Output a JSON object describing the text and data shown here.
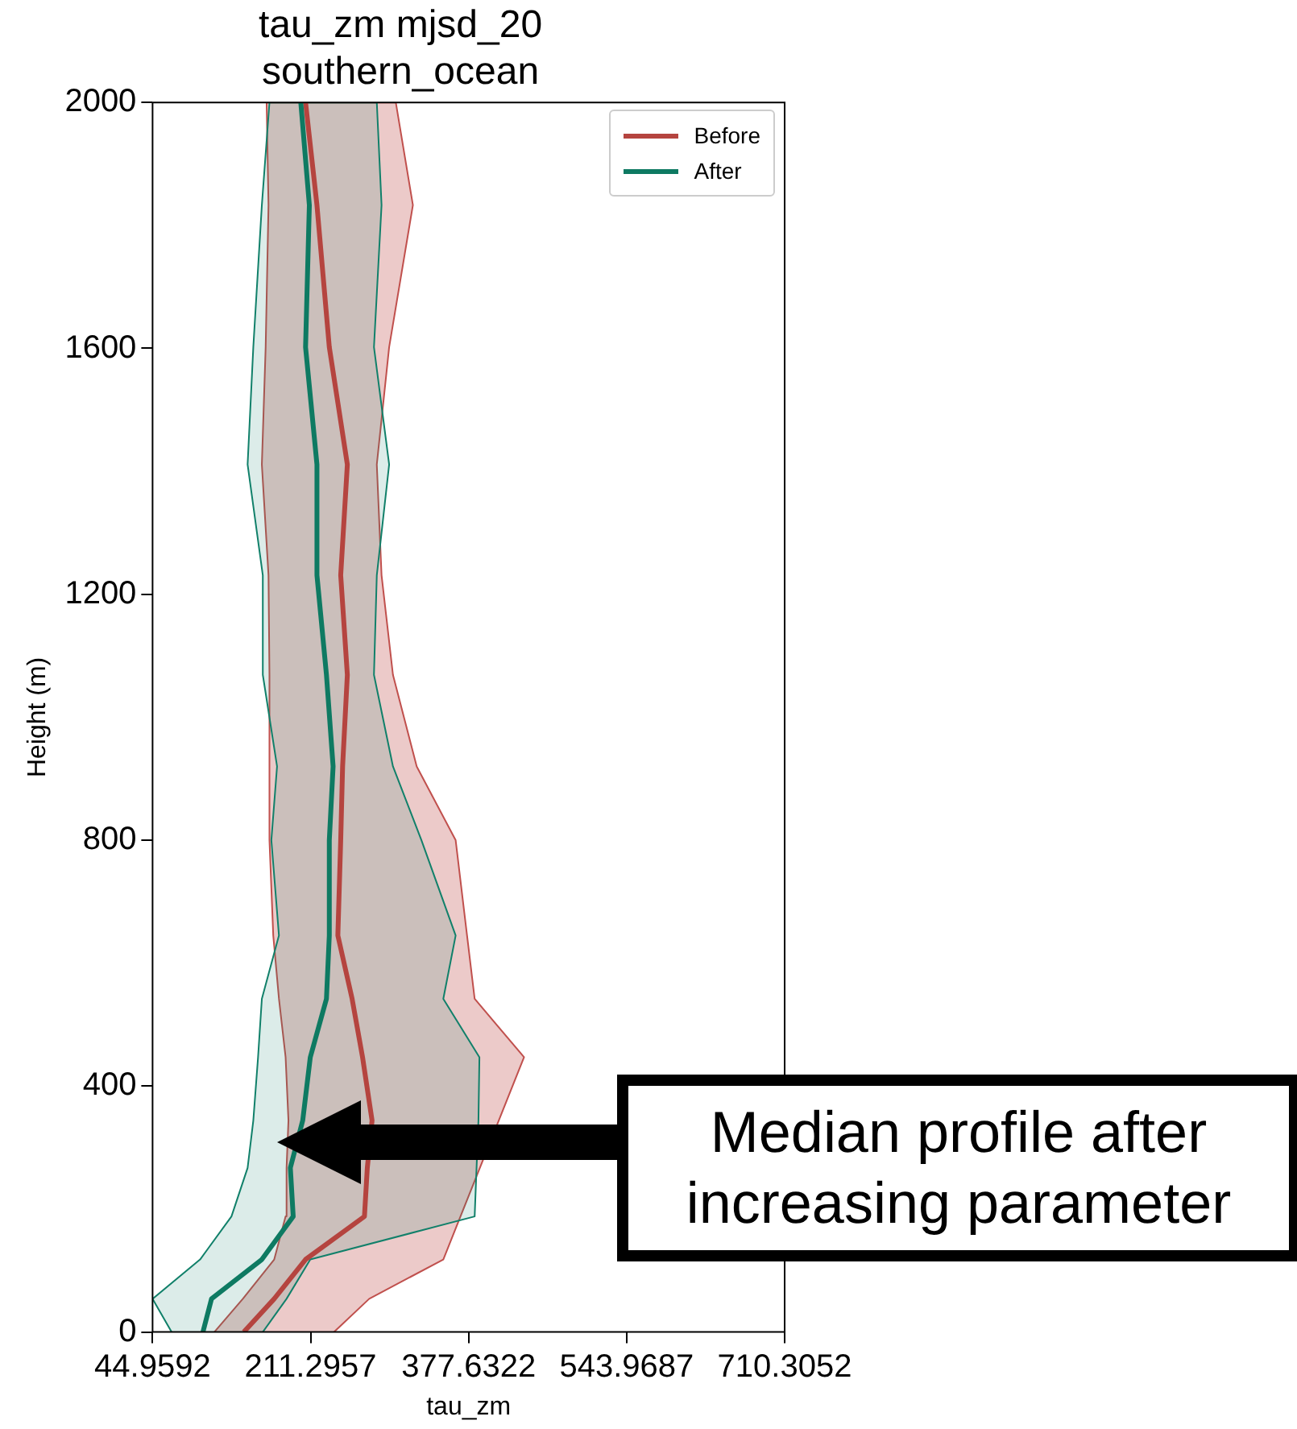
{
  "chart_data": {
    "type": "line",
    "title": "tau_zm mjsd_20",
    "subtitle": "southern_ocean",
    "xlabel": "tau_zm",
    "ylabel": "Height (m)",
    "xlim": [
      44.9592,
      710.3052
    ],
    "xticks": [
      44.9592,
      211.2957,
      377.6322,
      543.9687,
      710.3052
    ],
    "ylim": [
      0,
      2000
    ],
    "yticks": [
      0,
      400,
      800,
      1200,
      1600,
      2000
    ],
    "grid": false,
    "legend": "top right",
    "marker": "none",
    "line_style": "solid",
    "series": [
      {
        "type": "area",
        "color": "#c0504d",
        "x": [
          110,
          140,
          173,
          185,
          186,
          188,
          185,
          178,
          172,
          168,
          168,
          167,
          160,
          164,
          167,
          165,
          301,
          319,
          294,
          281,
          286,
          298,
          323,
          364,
          376,
          384,
          436,
          351,
          273,
          236
        ],
        "values": [
          0,
          54,
          118,
          188,
          267,
          344,
          447,
          542,
          645,
          800,
          1069,
          1231,
          1411,
          1602,
          1833,
          2000,
          2000,
          1833,
          1602,
          1411,
          1231,
          1069,
          920,
          800,
          645,
          542,
          447,
          118,
          54,
          0
        ]
      },
      {
        "type": "area",
        "color": "#11806a",
        "x": [
          65,
          45,
          95,
          128,
          145,
          151,
          156,
          160,
          178,
          170,
          176,
          161,
          161,
          145,
          151,
          160,
          168,
          281,
          286,
          278,
          294,
          281,
          278,
          298,
          328,
          364,
          351,
          389,
          388,
          386,
          384,
          211,
          186,
          161
        ],
        "values": [
          0,
          54,
          118,
          188,
          267,
          344,
          447,
          542,
          645,
          800,
          920,
          1069,
          1231,
          1411,
          1602,
          1833,
          2000,
          2000,
          1833,
          1602,
          1411,
          1231,
          1069,
          920,
          800,
          645,
          542,
          447,
          344,
          267,
          188,
          118,
          54,
          0
        ]
      },
      {
        "name": "Before",
        "color": "#b5443f",
        "x": [
          141,
          173,
          206,
          268,
          271,
          276,
          266,
          255,
          240,
          243,
          245,
          250,
          243,
          250,
          231,
          218,
          206
        ],
        "values": [
          0,
          54,
          118,
          188,
          267,
          344,
          447,
          542,
          645,
          800,
          920,
          1069,
          1231,
          1411,
          1602,
          1833,
          2000
        ]
      },
      {
        "name": "After",
        "color": "#0e7a62",
        "x": [
          98,
          107,
          160,
          193,
          190,
          203,
          211,
          228,
          231,
          231,
          235,
          228,
          218,
          218,
          206,
          210,
          201
        ],
        "values": [
          0,
          54,
          118,
          188,
          267,
          344,
          447,
          542,
          645,
          800,
          920,
          1069,
          1231,
          1411,
          1602,
          1833,
          2000
        ]
      }
    ],
    "annotations": [
      "Median profile after increasing parameter"
    ]
  }
}
